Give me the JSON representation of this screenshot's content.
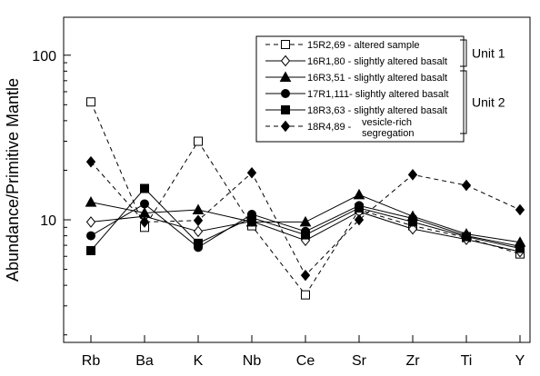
{
  "chart_data": {
    "type": "line",
    "yscale": "log",
    "ylim": [
      1.8,
      170
    ],
    "ylabel": "Abundance/Primitive Mantle",
    "xlabel": "",
    "title": "",
    "categories": [
      "Rb",
      "Ba",
      "K",
      "Nb",
      "Ce",
      "Sr",
      "Zr",
      "Ti",
      "Y"
    ],
    "yticks": [
      {
        "value": 10,
        "label": "10"
      },
      {
        "value": 100,
        "label": "100"
      }
    ],
    "legend_position": "top-right",
    "series": [
      {
        "name": "15R2,69 - altered sample",
        "marker": "square-open",
        "dashed": true,
        "values": [
          52,
          9,
          30,
          9.2,
          3.5,
          11.5,
          9.2,
          7.8,
          6.2
        ]
      },
      {
        "name": "16R1,80 - slightly altered basalt",
        "marker": "diamond-open",
        "dashed": false,
        "values": [
          9.7,
          10.5,
          8.5,
          9.8,
          7.5,
          11.2,
          8.8,
          7.6,
          6.4
        ]
      },
      {
        "name": "16R3,51 - slightly altered basalt",
        "marker": "triangle",
        "dashed": false,
        "values": [
          12.8,
          11,
          11.5,
          9.7,
          9.7,
          14.2,
          10.5,
          8.2,
          7.3
        ]
      },
      {
        "name": "17R1,111- slightly altered basalt",
        "marker": "circle",
        "dashed": false,
        "values": [
          8,
          12.5,
          6.8,
          10.8,
          8.5,
          12.2,
          10.2,
          8,
          6.9
        ]
      },
      {
        "name": "18R3,63 - slightly altered basalt",
        "marker": "square",
        "dashed": false,
        "values": [
          6.5,
          15.5,
          7.2,
          10.3,
          8.1,
          11.8,
          9.7,
          7.9,
          6.7
        ]
      },
      {
        "name": "18R4,89 - vesicle-rich segregation",
        "marker": "diamond",
        "dashed": true,
        "legend_lines": [
          "vesicle-rich",
          "segregation"
        ],
        "values": [
          22.5,
          9.7,
          9.9,
          19.3,
          4.6,
          10,
          18.8,
          16.2,
          11.5
        ]
      }
    ],
    "legend_groups": [
      {
        "label": "Unit 1",
        "series": [
          0,
          1
        ]
      },
      {
        "label": "Unit 2",
        "series": [
          1,
          2,
          3,
          4,
          5
        ]
      }
    ]
  }
}
